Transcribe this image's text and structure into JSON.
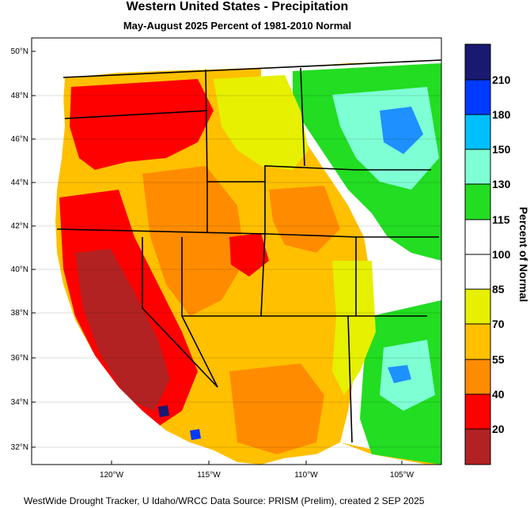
{
  "title": "Western United States - Precipitation",
  "subtitle": "May-August 2025  Percent of 1981-2010 Normal",
  "footer": "WestWide Drought Tracker, U Idaho/WRCC Data Source: PRISM (Prelim), created  2 SEP 2025",
  "map": {
    "lat_labels": [
      "50°N",
      "48°N",
      "46°N",
      "44°N",
      "42°N",
      "40°N",
      "38°N",
      "36°N",
      "34°N",
      "32°N"
    ],
    "lon_labels": [
      "120°W",
      "115°W",
      "110°W",
      "105°W"
    ],
    "colors": {
      "ocean": "#ffffff",
      "land_dry_extreme": "#b22222",
      "land_dry": "#ff0000",
      "land_dryish": "#ff8c00",
      "land_low": "#ffc000",
      "land_mid": "#e6f000",
      "land_normal": "#ffffff",
      "land_wet": "#22dd22",
      "land_wetter": "#7fffd4",
      "land_very_wet": "#1e90ff"
    }
  },
  "colorbar": {
    "title": "Percent of Normal",
    "labels": [
      "210",
      "180",
      "150",
      "130",
      "115",
      "100",
      "85",
      "70",
      "55",
      "40",
      "20"
    ],
    "colors": [
      "#191970",
      "#0039ff",
      "#00bfff",
      "#7fffd4",
      "#22dd22",
      "#ffffff",
      "#ffffff",
      "#e6f000",
      "#ffc000",
      "#ff8c00",
      "#ff0000",
      "#b22222"
    ]
  }
}
